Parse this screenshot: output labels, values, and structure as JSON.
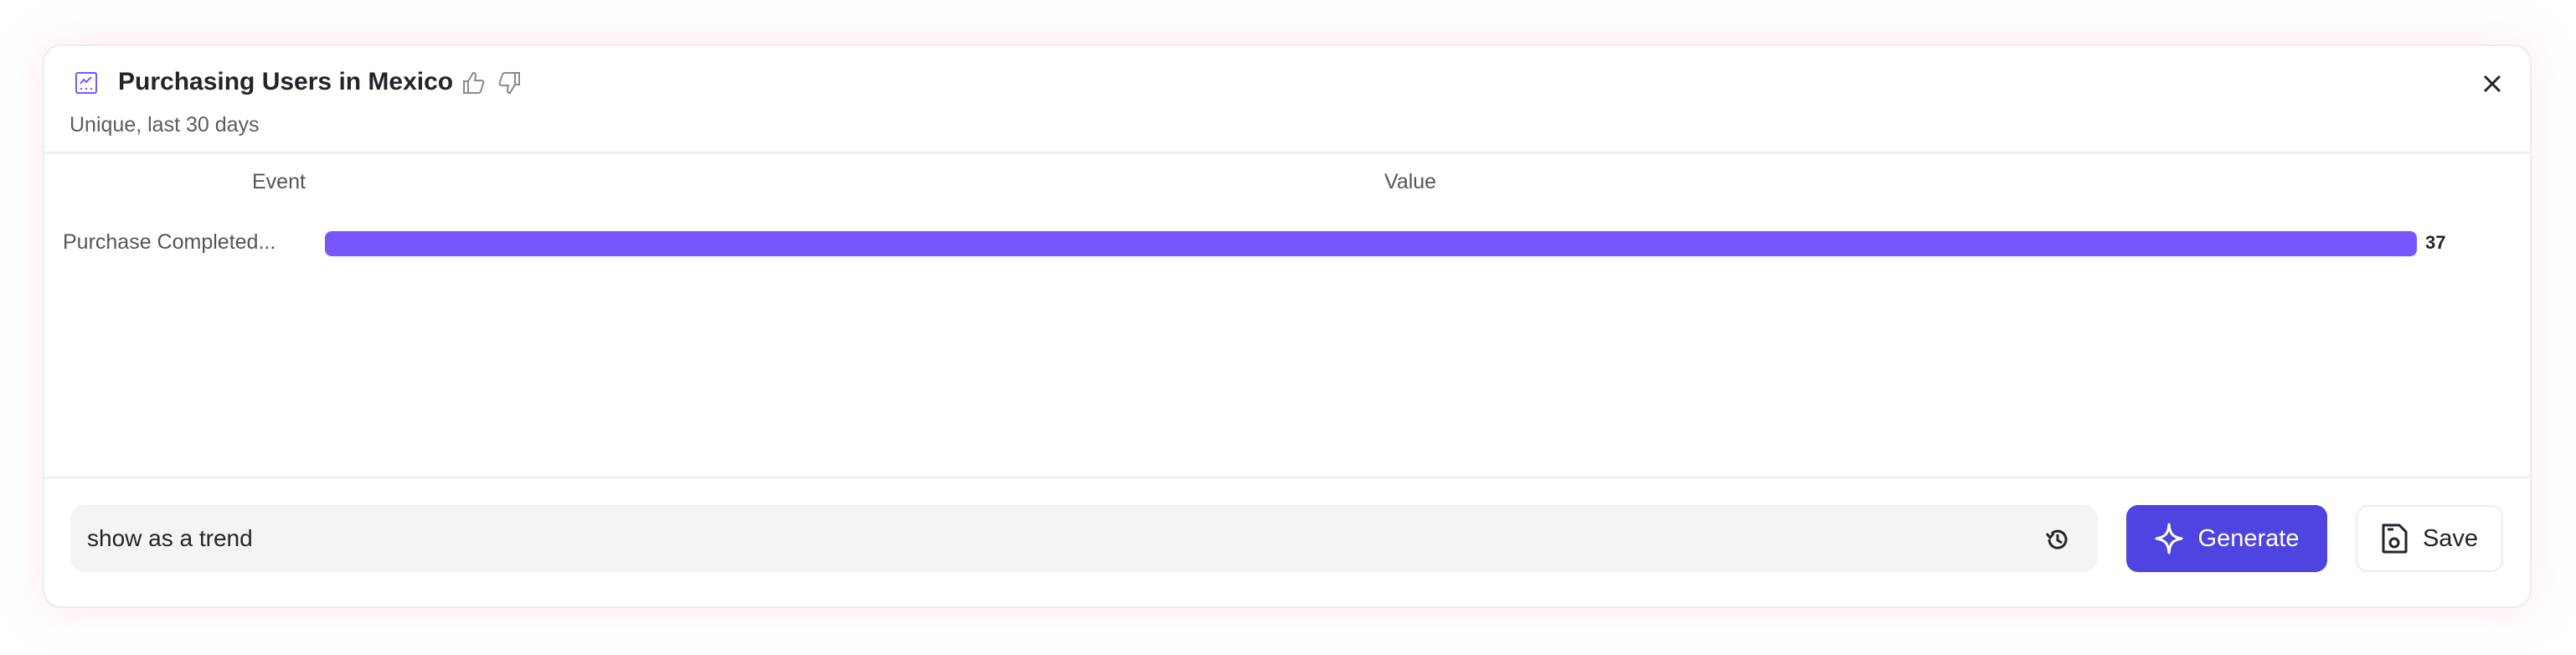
{
  "header": {
    "title": "Purchasing Users in Mexico",
    "subtitle": "Unique, last 30 days",
    "icons": [
      "line-chart-icon",
      "thumbs-up-icon",
      "thumbs-down-icon",
      "close-icon"
    ]
  },
  "table": {
    "columns": [
      "Event",
      "Value"
    ],
    "rows": [
      {
        "event": "Purchase Completed...",
        "value": "37"
      }
    ]
  },
  "chart_data": {
    "type": "bar",
    "categories": [
      "Purchase Completed..."
    ],
    "values": [
      37
    ],
    "xlabel": "Value",
    "ylabel": "Event"
  },
  "prompt": {
    "value": "show as a trend"
  },
  "buttons": {
    "generate": "Generate",
    "save": "Save"
  },
  "colors": {
    "bar": "#7856ff",
    "generate": "#4f44e0"
  }
}
